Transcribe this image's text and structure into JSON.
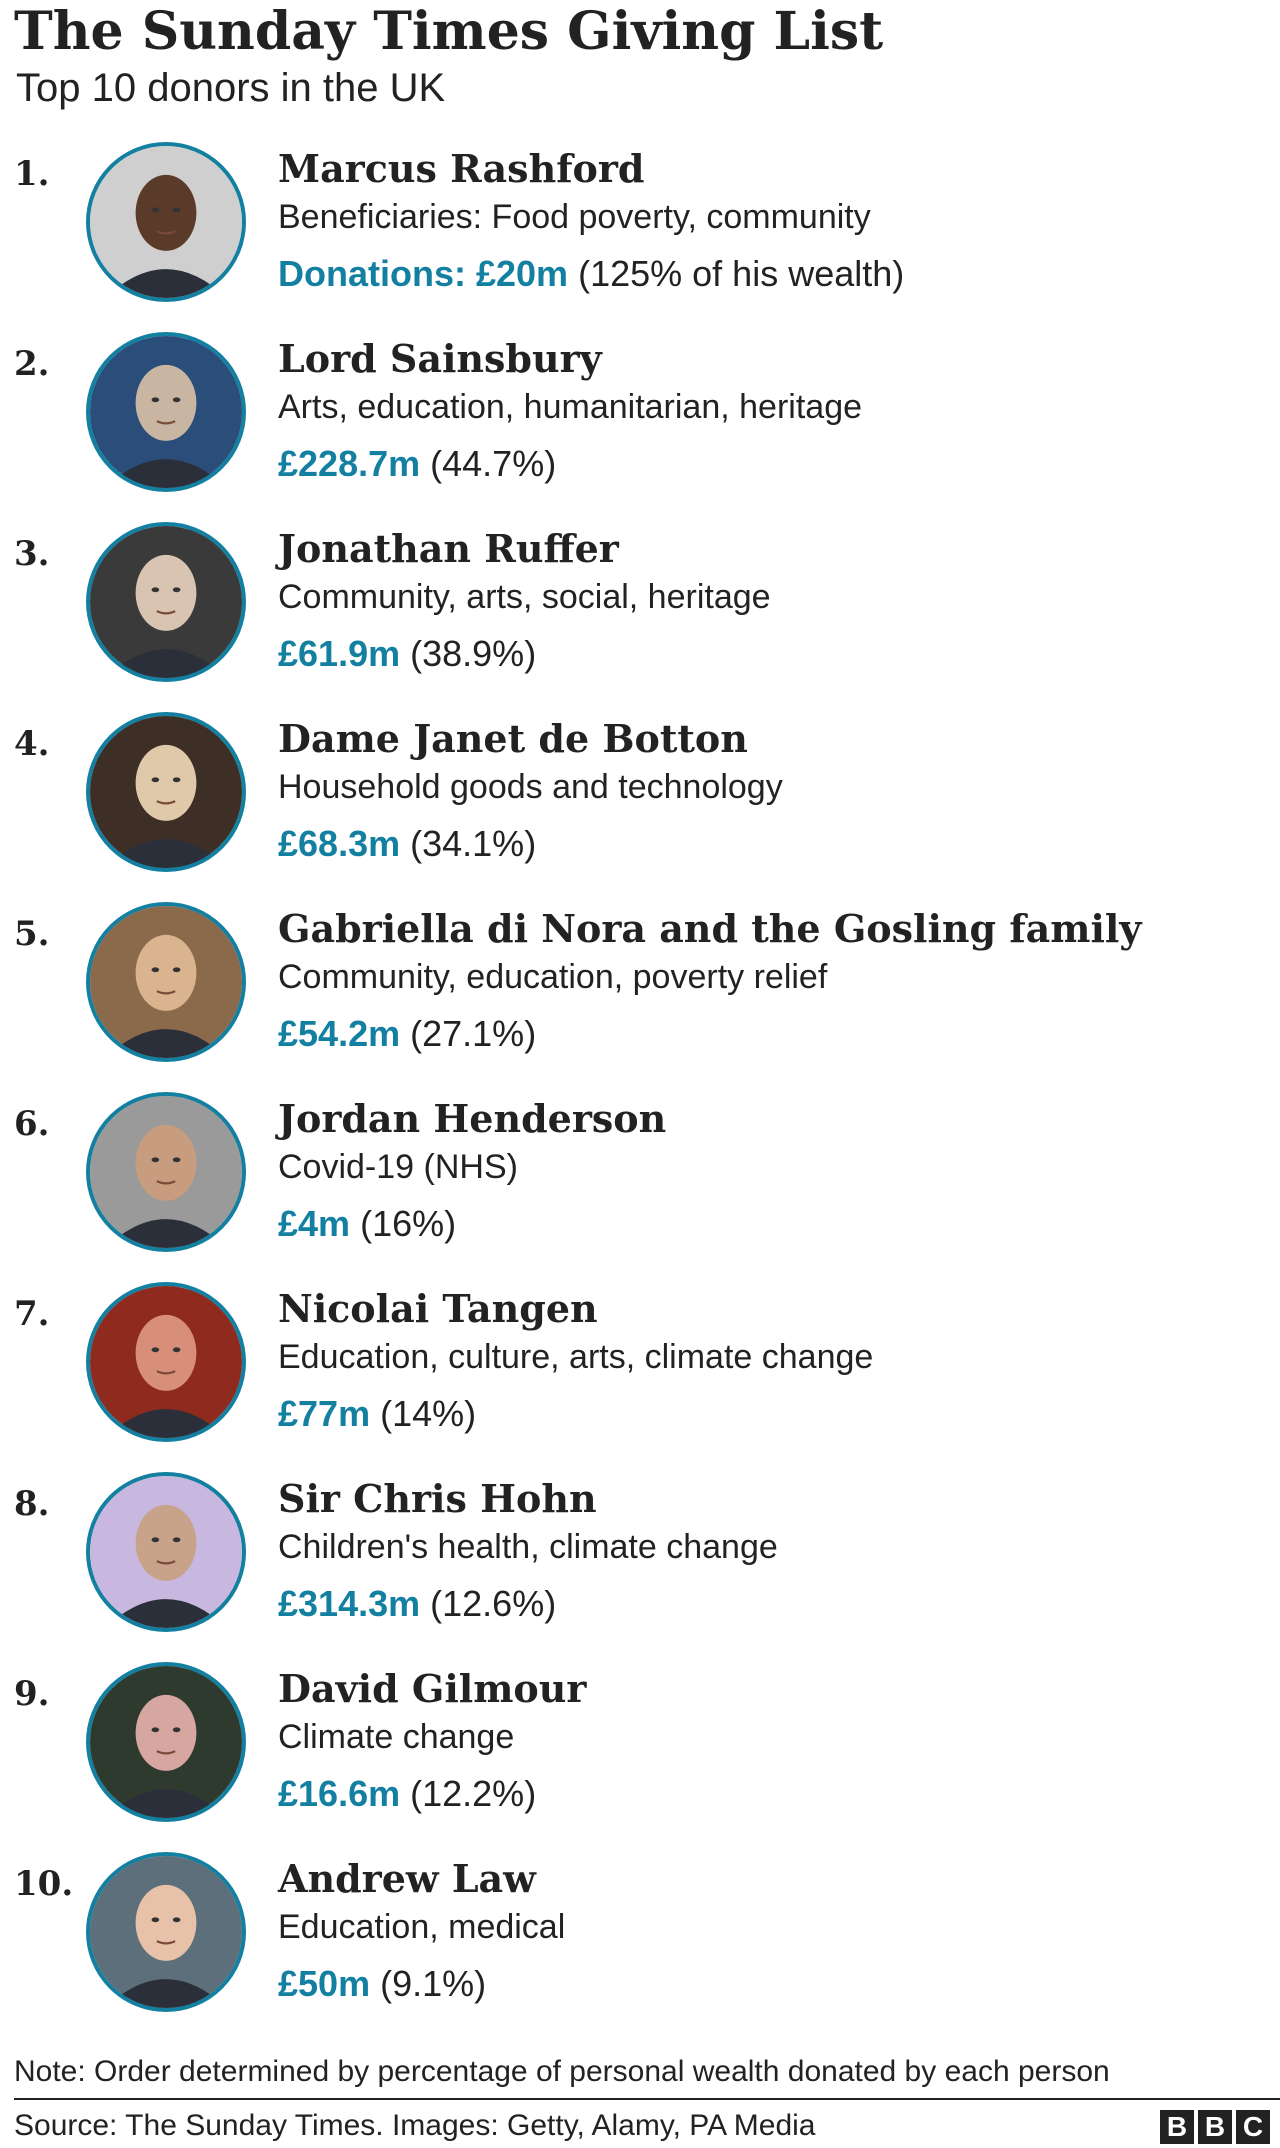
{
  "title": "The Sunday Times Giving List",
  "subtitle": "Top 10 donors in the UK",
  "accent_color": "#1380a1",
  "donors": [
    {
      "rank": "1.",
      "name": "Marcus Rashford",
      "causes": "Beneficiaries: Food poverty, community",
      "amount": "Donations: £20m",
      "share": "(125% of his wealth)",
      "photo_icon": "portrait-photo"
    },
    {
      "rank": "2.",
      "name": "Lord Sainsbury",
      "causes": "Arts, education, humanitarian, heritage",
      "amount": "£228.7m",
      "share": "(44.7%)",
      "photo_icon": "portrait-photo"
    },
    {
      "rank": "3.",
      "name": "Jonathan Ruffer",
      "causes": "Community, arts, social, heritage",
      "amount": "£61.9m",
      "share": "(38.9%)",
      "photo_icon": "portrait-photo"
    },
    {
      "rank": "4.",
      "name": "Dame Janet de Botton",
      "causes": "Household goods and technology",
      "amount": "£68.3m",
      "share": "(34.1%)",
      "photo_icon": "portrait-photo"
    },
    {
      "rank": "5.",
      "name": "Gabriella di Nora and the Gosling family",
      "causes": "Community, education, poverty relief",
      "amount": "£54.2m",
      "share": "(27.1%)",
      "photo_icon": "portrait-photo"
    },
    {
      "rank": "6.",
      "name": "Jordan Henderson",
      "causes": "Covid-19 (NHS)",
      "amount": "£4m",
      "share": "(16%)",
      "photo_icon": "portrait-photo"
    },
    {
      "rank": "7.",
      "name": "Nicolai Tangen",
      "causes": "Education, culture, arts, climate change",
      "amount": "£77m",
      "share": "(14%)",
      "photo_icon": "portrait-photo"
    },
    {
      "rank": "8.",
      "name": "Sir Chris Hohn",
      "causes": "Children's health, climate change",
      "amount": "£314.3m",
      "share": "(12.6%)",
      "photo_icon": "portrait-photo"
    },
    {
      "rank": "9.",
      "name": "David Gilmour",
      "causes": "Climate change",
      "amount": "£16.6m",
      "share": "(12.2%)",
      "photo_icon": "portrait-photo"
    },
    {
      "rank": "10.",
      "name": "Andrew Law",
      "causes": "Education, medical",
      "amount": "£50m",
      "share": "(9.1%)",
      "photo_icon": "portrait-photo"
    }
  ],
  "note": "Note: Order determined by percentage of personal wealth donated by each person",
  "source": "Source: The Sunday Times. Images: Getty, Alamy, PA Media",
  "logo": {
    "letters": [
      "B",
      "B",
      "C"
    ]
  }
}
